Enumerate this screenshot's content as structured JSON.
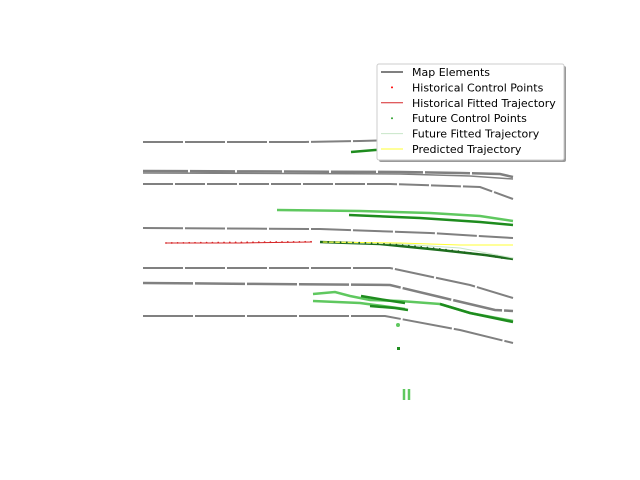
{
  "chart_data": {
    "type": "line",
    "title": "",
    "xlabel": "",
    "ylabel": "",
    "grid": false,
    "axes_visible": false,
    "legend": {
      "placement": "top-right",
      "entries": [
        {
          "label": "Map Elements",
          "color": "#808080",
          "marker": "line"
        },
        {
          "label": "Historical Control Points",
          "color": "#ff0000",
          "marker": "dot"
        },
        {
          "label": "Historical Fitted Trajectory",
          "color": "#d62728",
          "marker": "line"
        },
        {
          "label": "Future Control Points",
          "color": "#2ca02c",
          "marker": "dot"
        },
        {
          "label": "Future Fitted Trajectory",
          "color": "#c8e6c8",
          "marker": "line"
        },
        {
          "label": "Predicted Trajectory",
          "color": "#ffff33",
          "marker": "line"
        }
      ]
    },
    "colors": {
      "map": "#808080",
      "historical": "#d62728",
      "future": "#2ca02c",
      "predicted": "#ffff33",
      "lane_dark": "#1e8c1e",
      "lane_light": "#5fc85f"
    }
  }
}
